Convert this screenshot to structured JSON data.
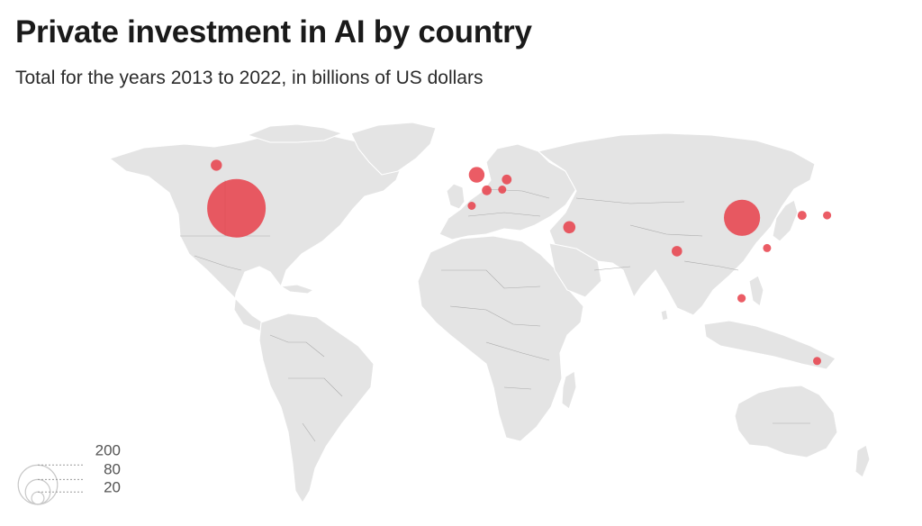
{
  "title": "Private investment in AI by country",
  "subtitle": "Total for the years 2013 to 2022, in billions of US dollars",
  "colors": {
    "bubble": "#e8404a",
    "land": "#e4e4e4",
    "border": "#a9a9a9"
  },
  "legend": {
    "values": [
      200,
      80,
      20
    ],
    "labels": [
      "200",
      "80",
      "20"
    ]
  },
  "chart_data": {
    "type": "bubble-map",
    "title": "Private investment in AI by country",
    "subtitle": "Total for the years 2013 to 2022, in billions of US dollars",
    "legend_sizes": [
      200,
      80,
      20
    ],
    "points": [
      {
        "country": "United States",
        "lon": -98,
        "lat": 39,
        "value": 249
      },
      {
        "country": "Canada",
        "lon": -106,
        "lat": 57,
        "value": 9
      },
      {
        "country": "United Kingdom",
        "lon": -2,
        "lat": 53,
        "value": 18
      },
      {
        "country": "Germany",
        "lon": 10,
        "lat": 51,
        "value": 7
      },
      {
        "country": "France",
        "lon": 2,
        "lat": 46.5,
        "value": 7
      },
      {
        "country": "Switzerland",
        "lon": 8.2,
        "lat": 46.8,
        "value": 3
      },
      {
        "country": "Spain",
        "lon": -4,
        "lat": 40,
        "value": 2
      },
      {
        "country": "Israel",
        "lon": 35,
        "lat": 31,
        "value": 11
      },
      {
        "country": "India",
        "lon": 78,
        "lat": 21,
        "value": 8
      },
      {
        "country": "China",
        "lon": 104,
        "lat": 35,
        "value": 95
      },
      {
        "country": "South Korea",
        "lon": 128,
        "lat": 36,
        "value": 6
      },
      {
        "country": "Japan",
        "lon": 138,
        "lat": 36,
        "value": 4
      },
      {
        "country": "Hong Kong",
        "lon": 114,
        "lat": 22.3,
        "value": 3
      },
      {
        "country": "Singapore",
        "lon": 103.8,
        "lat": 1.3,
        "value": 5
      },
      {
        "country": "Australia",
        "lon": 134,
        "lat": -25,
        "value": 3
      }
    ]
  }
}
